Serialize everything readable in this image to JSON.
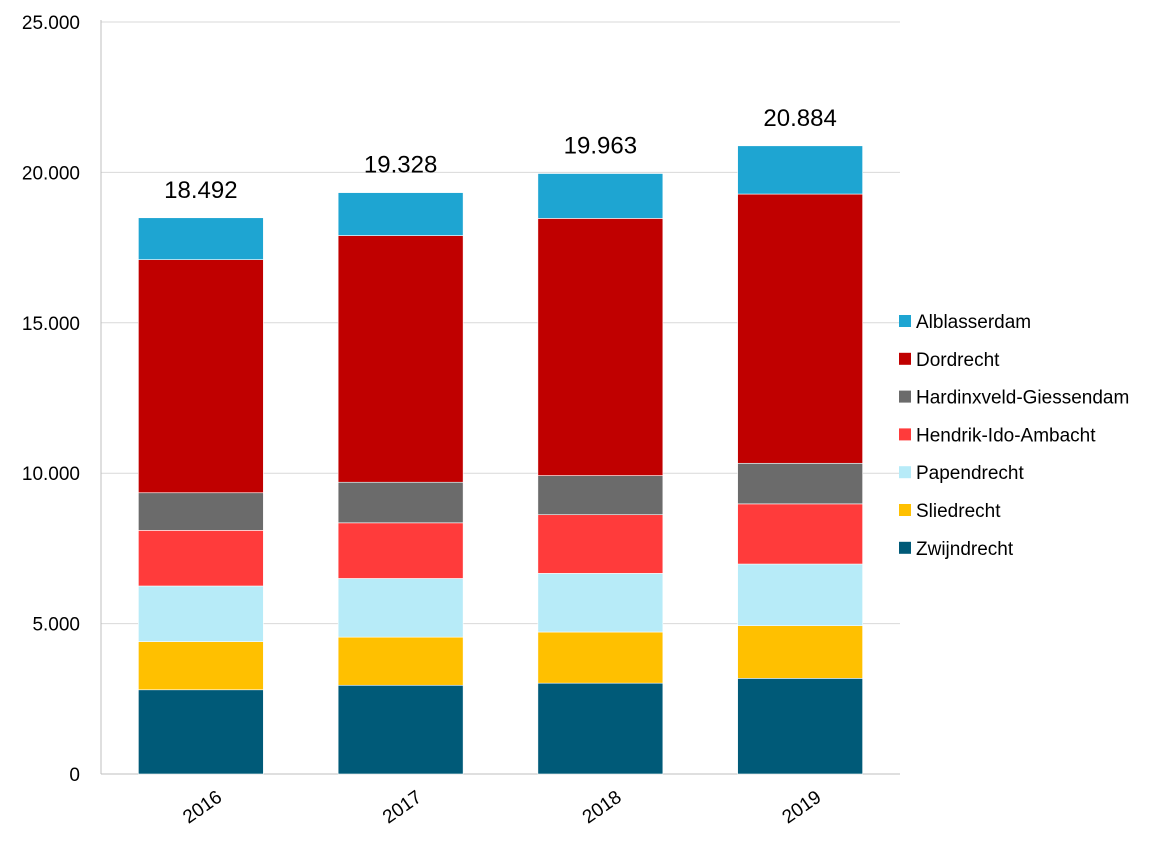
{
  "chart_data": {
    "type": "bar",
    "stacked": true,
    "categories": [
      "2016",
      "2017",
      "2018",
      "2019"
    ],
    "ylim": [
      0,
      25000
    ],
    "yticks": [
      {
        "value": 0,
        "label": "0"
      },
      {
        "value": 5000,
        "label": "5.000"
      },
      {
        "value": 10000,
        "label": "10.000"
      },
      {
        "value": 15000,
        "label": "15.000"
      },
      {
        "value": 20000,
        "label": "20.000"
      },
      {
        "value": 25000,
        "label": "25.000"
      }
    ],
    "grid": true,
    "legend_position": "right",
    "totals": [
      {
        "value": 18492,
        "label": "18.492"
      },
      {
        "value": 19328,
        "label": "19.328"
      },
      {
        "value": 19963,
        "label": "19.963"
      },
      {
        "value": 20884,
        "label": "20.884"
      }
    ],
    "series": [
      {
        "name": "Zwijndrecht",
        "color": "#005a78",
        "values": [
          2800,
          2950,
          3020,
          3180
        ]
      },
      {
        "name": "Sliedrecht",
        "color": "#ffc000",
        "values": [
          1600,
          1600,
          1700,
          1750
        ]
      },
      {
        "name": "Papendrecht",
        "color": "#b7ebf8",
        "values": [
          1850,
          1950,
          1950,
          2050
        ]
      },
      {
        "name": "Hendrik-Ido-Ambacht",
        "color": "#ff3b3b",
        "values": [
          1850,
          1850,
          1950,
          2000
        ]
      },
      {
        "name": "Hardinxveld-Giessendam",
        "color": "#6b6b6b",
        "values": [
          1250,
          1350,
          1300,
          1350
        ]
      },
      {
        "name": "Dordrecht",
        "color": "#c00000",
        "values": [
          7750,
          8200,
          8550,
          8950
        ]
      },
      {
        "name": "Alblasserdam",
        "color": "#1ea5d2",
        "values": [
          1392,
          1428,
          1493,
          1604
        ]
      }
    ]
  }
}
